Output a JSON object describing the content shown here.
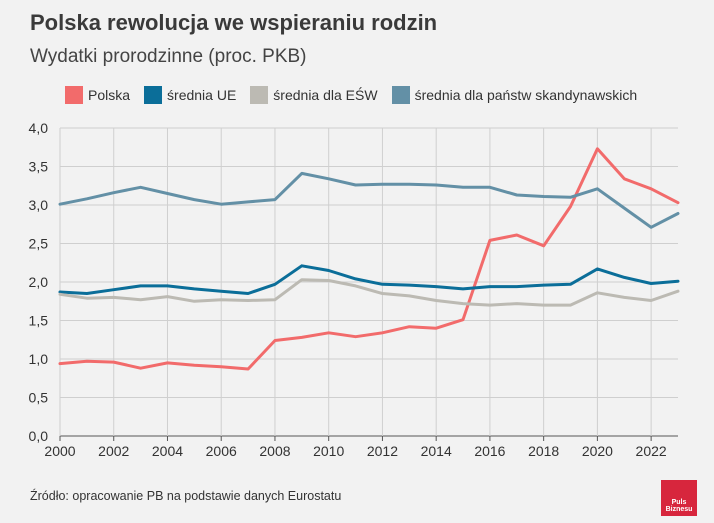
{
  "header": {
    "title": "Polska rewolucja we wspieraniu rodzin",
    "subtitle": "Wydatki prorodzinne (proc. PKB)"
  },
  "source": "Źródło: opracowanie PB na podstawie danych Eurostatu",
  "logo": {
    "line1": "Puls",
    "line2": "Biznesu",
    "color": "#d7263d"
  },
  "chart_data": {
    "type": "line",
    "x": [
      2000,
      2001,
      2002,
      2003,
      2004,
      2005,
      2006,
      2007,
      2008,
      2009,
      2010,
      2011,
      2012,
      2013,
      2014,
      2015,
      2016,
      2017,
      2018,
      2019,
      2020,
      2021,
      2022,
      2023
    ],
    "xticks": [
      2000,
      2002,
      2004,
      2006,
      2008,
      2010,
      2012,
      2014,
      2016,
      2018,
      2020,
      2022
    ],
    "yticks": [
      "0,0",
      "0,5",
      "1,0",
      "1,5",
      "2,0",
      "2,5",
      "3,0",
      "3,5",
      "4,0"
    ],
    "ylim": [
      0,
      4
    ],
    "xlim": [
      2000,
      2023
    ],
    "grid": true,
    "legend_position": "top",
    "series": [
      {
        "name": "Polska",
        "color": "#f26b6b",
        "values": [
          0.94,
          0.97,
          0.96,
          0.88,
          0.95,
          0.92,
          0.9,
          0.87,
          1.24,
          1.28,
          1.34,
          1.29,
          1.34,
          1.42,
          1.4,
          1.51,
          2.54,
          2.61,
          2.47,
          2.98,
          3.73,
          3.34,
          3.21,
          3.03
        ]
      },
      {
        "name": "średnia UE",
        "color": "#0b6e99",
        "values": [
          1.87,
          1.85,
          1.9,
          1.95,
          1.95,
          1.91,
          1.88,
          1.85,
          1.97,
          2.21,
          2.15,
          2.04,
          1.97,
          1.96,
          1.94,
          1.91,
          1.94,
          1.94,
          1.96,
          1.97,
          2.17,
          2.06,
          1.98,
          2.01
        ]
      },
      {
        "name": "średnia dla EŚW",
        "color": "#bcbab3",
        "values": [
          1.84,
          1.79,
          1.8,
          1.77,
          1.81,
          1.75,
          1.77,
          1.76,
          1.77,
          2.03,
          2.02,
          1.95,
          1.85,
          1.82,
          1.76,
          1.72,
          1.7,
          1.72,
          1.7,
          1.7,
          1.86,
          1.8,
          1.76,
          1.88
        ]
      },
      {
        "name": "średnia dla państw skandynawskich",
        "color": "#6390a6",
        "values": [
          3.01,
          3.08,
          3.16,
          3.23,
          3.15,
          3.07,
          3.01,
          3.04,
          3.07,
          3.41,
          3.34,
          3.26,
          3.27,
          3.27,
          3.26,
          3.23,
          3.23,
          3.13,
          3.11,
          3.1,
          3.21,
          2.96,
          2.71,
          2.89
        ]
      }
    ]
  }
}
